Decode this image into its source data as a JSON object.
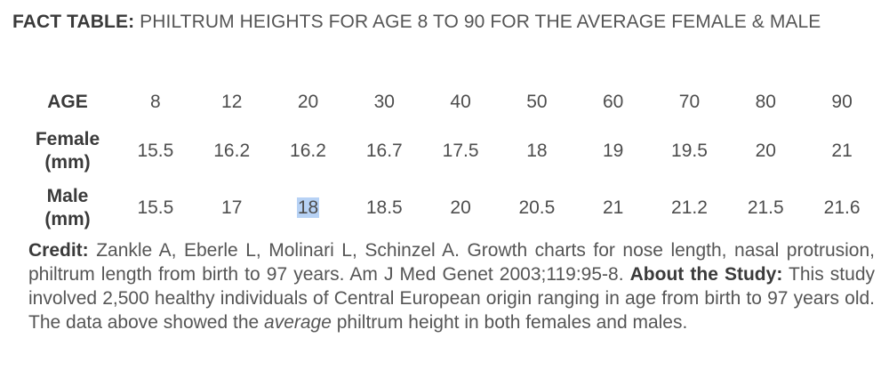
{
  "title": {
    "label": "FACT TABLE:",
    "text": " PHILTRUM HEIGHTS FOR AGE 8 TO 90 FOR THE AVERAGE FEMALE & MALE"
  },
  "table": {
    "age_header": "AGE",
    "female_header_line1": "Female",
    "female_header_line2": "(mm)",
    "male_header_line1": "Male",
    "male_header_line2": "(mm)",
    "ages": [
      "8",
      "12",
      "20",
      "30",
      "40",
      "50",
      "60",
      "70",
      "80",
      "90"
    ],
    "female": [
      "15.5",
      "16.2",
      "16.2",
      "16.7",
      "17.5",
      "18",
      "19",
      "19.5",
      "20",
      "21"
    ],
    "male": [
      "15.5",
      "17",
      "18",
      "18.5",
      "20",
      "20.5",
      "21",
      "21.2",
      "21.5",
      "21.6"
    ],
    "highlight_color": "#b7d2f5",
    "highlighted_cell": "male 20"
  },
  "credit": {
    "credit_label": "Credit:",
    "credit_text": " Zankle A, Eberle L, Molinari L, Schinzel A. Growth charts for nose length, nasal protrusion, philtrum length from birth to 97 years. Am J Med Genet 2003;119:95-8. ",
    "about_label": "About the Study:",
    "about_text_1": " This study involved 2,500 healthy individuals of Central European origin ranging in age from birth to 97 years old. The data above showed the ",
    "about_emphasis": "average",
    "about_text_2": " philtrum height in both females and males."
  }
}
